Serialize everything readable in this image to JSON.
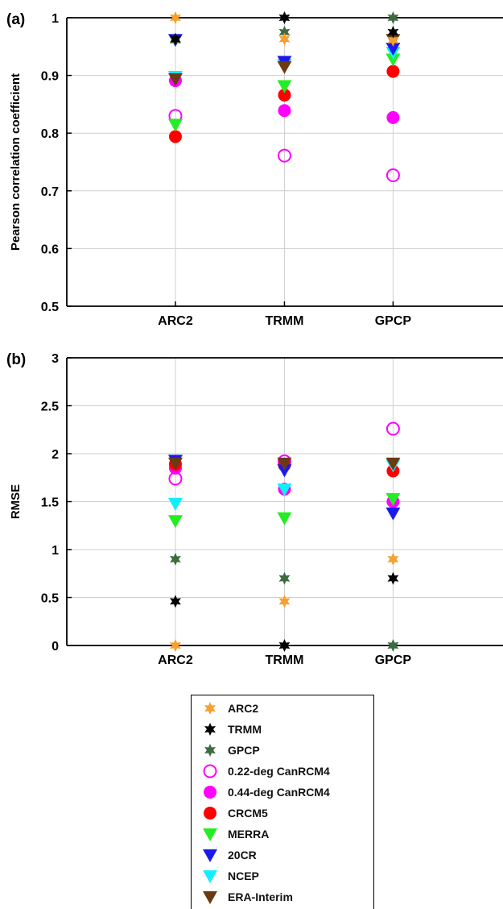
{
  "chart_data": [
    {
      "type": "scatter",
      "panel_label": "(a)",
      "title": "",
      "xlabel": "",
      "ylabel": "Pearson correlation coefficient",
      "categories": [
        "ARC2",
        "TRMM",
        "GPCP"
      ],
      "ylim": [
        0.5,
        1
      ],
      "yticks": [
        "0.5",
        "0.6",
        "0.7",
        "0.8",
        "0.9",
        "1"
      ],
      "grid": true,
      "series": [
        {
          "name": "ARC2",
          "values": [
            1.0,
            0.963,
            0.961
          ]
        },
        {
          "name": "TRMM",
          "values": [
            0.963,
            1.0,
            0.975
          ]
        },
        {
          "name": "GPCP",
          "values": [
            0.961,
            0.975,
            1.0
          ]
        },
        {
          "name": "0.22-deg CanRCM4",
          "values": [
            0.83,
            0.761,
            0.727
          ]
        },
        {
          "name": "0.44-deg CanRCM4",
          "values": [
            0.891,
            0.839,
            0.827
          ]
        },
        {
          "name": "CRCM5",
          "values": [
            0.794,
            0.866,
            0.907
          ]
        },
        {
          "name": "MERRA",
          "values": [
            0.815,
            0.882,
            0.928
          ]
        },
        {
          "name": "20CR",
          "values": [
            0.962,
            0.924,
            0.947
          ]
        },
        {
          "name": "NCEP",
          "values": [
            0.898,
            0.919,
            0.94
          ]
        },
        {
          "name": "ERA-Interim",
          "values": [
            0.894,
            0.915,
            0.962
          ]
        }
      ]
    },
    {
      "type": "scatter",
      "panel_label": "(b)",
      "title": "",
      "xlabel": "",
      "ylabel": "RMSE",
      "categories": [
        "ARC2",
        "TRMM",
        "GPCP"
      ],
      "ylim": [
        0,
        3
      ],
      "yticks": [
        "0",
        "0.5",
        "1",
        "1.5",
        "2",
        "2.5",
        "3"
      ],
      "grid": true,
      "series": [
        {
          "name": "ARC2",
          "values": [
            0.0,
            0.46,
            0.9
          ]
        },
        {
          "name": "TRMM",
          "values": [
            0.46,
            0.0,
            0.7
          ]
        },
        {
          "name": "GPCP",
          "values": [
            0.9,
            0.7,
            0.0
          ]
        },
        {
          "name": "0.22-deg CanRCM4",
          "values": [
            1.74,
            1.92,
            2.26
          ]
        },
        {
          "name": "0.44-deg CanRCM4",
          "values": [
            1.85,
            1.63,
            1.5
          ]
        },
        {
          "name": "CRCM5",
          "values": [
            1.89,
            1.88,
            1.82
          ]
        },
        {
          "name": "MERRA",
          "values": [
            1.3,
            1.33,
            1.53
          ]
        },
        {
          "name": "20CR",
          "values": [
            1.93,
            1.83,
            1.38
          ]
        },
        {
          "name": "NCEP",
          "values": [
            1.48,
            1.63,
            1.88
          ]
        },
        {
          "name": "ERA-Interim",
          "values": [
            1.9,
            1.9,
            1.9
          ]
        }
      ]
    }
  ],
  "legend": {
    "placement": "bottom-center",
    "items": [
      {
        "label": "ARC2",
        "marker": "star6",
        "color": "#f5a030",
        "filled": true
      },
      {
        "label": "TRMM",
        "marker": "star6",
        "color": "#000000",
        "filled": true
      },
      {
        "label": "GPCP",
        "marker": "star6",
        "color": "#3d6b3f",
        "filled": true
      },
      {
        "label": "0.22-deg CanRCM4",
        "marker": "circle",
        "color": "#ff00ff",
        "filled": false
      },
      {
        "label": "0.44-deg CanRCM4",
        "marker": "circle",
        "color": "#ff00ff",
        "filled": true
      },
      {
        "label": "CRCM5",
        "marker": "circle",
        "color": "#ff0000",
        "filled": true
      },
      {
        "label": "MERRA",
        "marker": "triangle-down",
        "color": "#22ee22",
        "filled": true
      },
      {
        "label": "20CR",
        "marker": "triangle-down",
        "color": "#1a1aee",
        "filled": true
      },
      {
        "label": "NCEP",
        "marker": "triangle-down",
        "color": "#11eeff",
        "filled": true
      },
      {
        "label": "ERA-Interim",
        "marker": "triangle-down",
        "color": "#6b3a12",
        "filled": true
      }
    ]
  }
}
